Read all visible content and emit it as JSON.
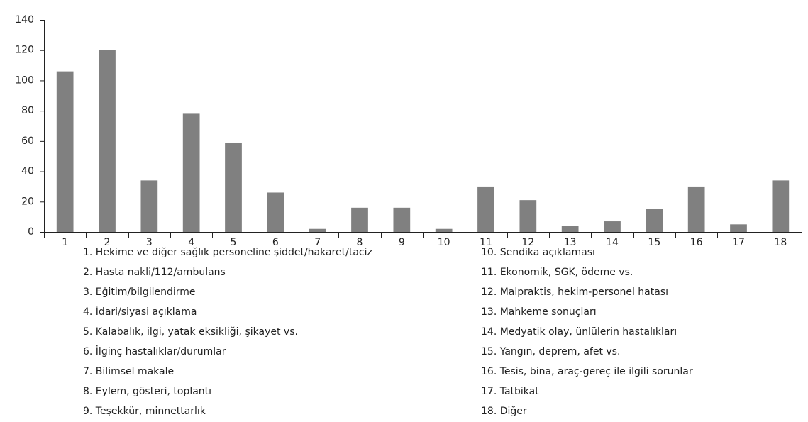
{
  "chart_data": {
    "type": "bar",
    "categories": [
      "1",
      "2",
      "3",
      "4",
      "5",
      "6",
      "7",
      "8",
      "9",
      "10",
      "11",
      "12",
      "13",
      "14",
      "15",
      "16",
      "17",
      "18"
    ],
    "values": [
      106,
      120,
      34,
      78,
      59,
      26,
      2,
      16,
      16,
      2,
      30,
      21,
      4,
      7,
      15,
      30,
      5,
      34
    ],
    "color": "#808080",
    "ylim": [
      0,
      140
    ],
    "yticks": [
      0,
      20,
      40,
      60,
      80,
      100,
      120,
      140
    ],
    "grid": false,
    "legend_items": [
      "1. Hekime ve diğer sağlık personeline şiddet/hakaret/taciz",
      "2. Hasta nakli/112/ambulans",
      "3. Eğitim/bilgilendirme",
      "4. İdari/siyasi açıklama",
      "5. Kalabalık, ilgi, yatak eksikliği, şikayet vs.",
      "6. İlginç hastalıklar/durumlar",
      "7. Bilimsel makale",
      "8. Eylem, gösteri, toplantı",
      "9. Teşekkür, minnettarlık",
      "10. Sendika açıklaması",
      "11. Ekonomik, SGK, ödeme vs.",
      "12. Malpraktis, hekim-personel hatası",
      "13. Mahkeme sonuçları",
      "14. Medyatik olay, ünlülerin hastalıkları",
      "15. Yangın, deprem, afet vs.",
      "16. Tesis, bina, araç-gereç ile ilgili sorunlar",
      "17. Tatbikat",
      "18. Diğer"
    ]
  }
}
